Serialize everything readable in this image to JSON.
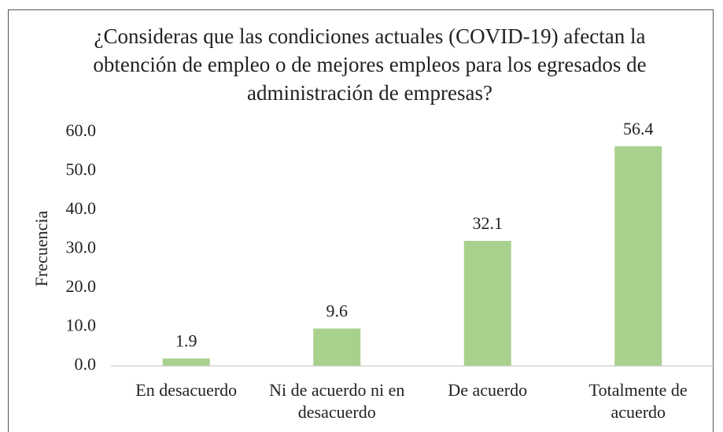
{
  "chart_data": {
    "type": "bar",
    "title": "¿Consideras que las condiciones actuales (COVID-19) afectan la obtención de empleo o de mejores empleos para los egresados de administración de empresas?",
    "y_label": "Frecuencia",
    "categories": [
      "En desacuerdo",
      "Ni de acuerdo ni en desacuerdo",
      "De acuerdo",
      "Totalmente de acuerdo"
    ],
    "values": [
      1.9,
      9.6,
      32.1,
      56.4
    ],
    "color": "#a9d18e",
    "ylim": [
      0,
      60
    ],
    "yticks": [
      {
        "value": 0,
        "label": "0.0"
      },
      {
        "value": 10,
        "label": "10.0"
      },
      {
        "value": 20,
        "label": "20.0"
      },
      {
        "value": 30,
        "label": "30.0"
      },
      {
        "value": 40,
        "label": "40.0"
      },
      {
        "value": 50,
        "label": "50.0"
      },
      {
        "value": 60,
        "label": "60.0"
      }
    ],
    "grid": false
  }
}
